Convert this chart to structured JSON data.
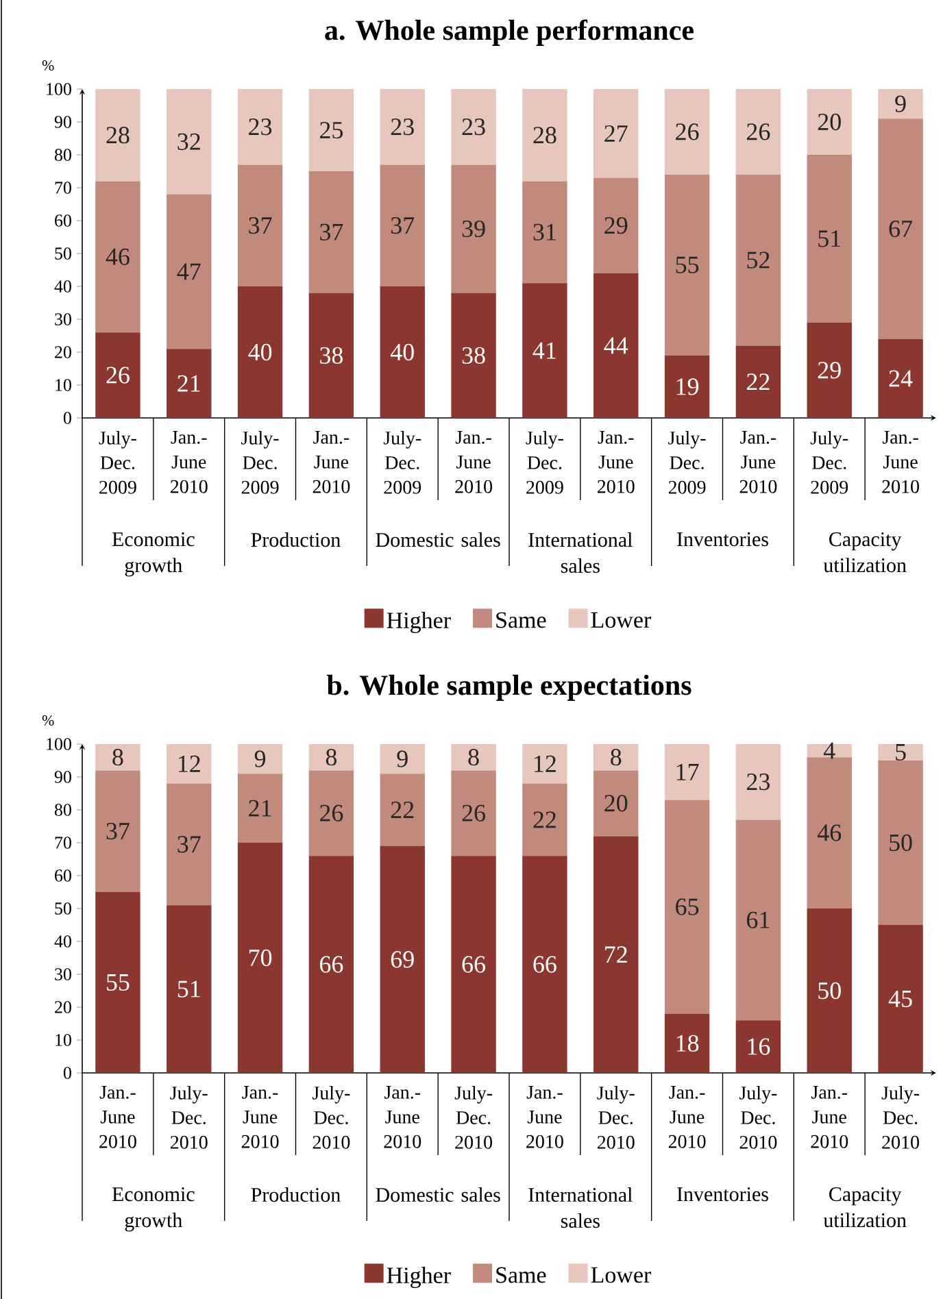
{
  "chart_data": [
    {
      "type": "bar",
      "title": "a. Whole sample performance",
      "ylabel": "%",
      "categories": [
        "July-Dec. 2009",
        "Jan.-June 2010",
        "July-Dec. 2009",
        "Jan.-June 2010",
        "July-Dec. 2009",
        "Jan.-June 2010",
        "July-Dec. 2009",
        "Jan.-June 2010",
        "July-Dec. 2009",
        "Jan.-June 2010",
        "July-Dec. 2009",
        "Jan.-June 2010"
      ],
      "annotations": [
        "Economic growth",
        "Production",
        "Domestic sales",
        "International sales",
        "Inventories",
        "Capacity utilization"
      ],
      "stacked": true,
      "ylim": [
        0,
        100
      ],
      "yticks": [
        0,
        10,
        20,
        30,
        40,
        50,
        60,
        70,
        80,
        90,
        100
      ],
      "data_labels": true,
      "legend": "bottom",
      "series": [
        {
          "name": "Higher",
          "color": "#8b3730",
          "values": [
            26,
            21,
            40,
            38,
            40,
            38,
            41,
            44,
            19,
            22,
            29,
            24
          ]
        },
        {
          "name": "Same",
          "color": "#c28a7d",
          "values": [
            46,
            47,
            37,
            37,
            37,
            39,
            31,
            29,
            55,
            52,
            51,
            67
          ]
        },
        {
          "name": "Lower",
          "color": "#e6c6bd",
          "values": [
            28,
            32,
            23,
            25,
            23,
            23,
            28,
            27,
            26,
            26,
            20,
            9
          ]
        }
      ]
    },
    {
      "type": "bar",
      "title": "b. Whole sample expectations",
      "ylabel": "%",
      "categories": [
        "Jan.-June 2010",
        "July-Dec. 2010",
        "Jan.-June 2010",
        "July-Dec. 2010",
        "Jan.-June 2010",
        "July-Dec. 2010",
        "Jan.-June 2010",
        "July-Dec. 2010",
        "Jan.-June 2010",
        "July-Dec. 2010",
        "Jan.-June 2010",
        "July-Dec. 2010"
      ],
      "annotations": [
        "Economic growth",
        "Production",
        "Domestic sales",
        "International sales",
        "Inventories",
        "Capacity utilization"
      ],
      "stacked": true,
      "ylim": [
        0,
        100
      ],
      "yticks": [
        0,
        10,
        20,
        30,
        40,
        50,
        60,
        70,
        80,
        90,
        100
      ],
      "data_labels": true,
      "legend": "bottom",
      "series": [
        {
          "name": "Higher",
          "color": "#8b3730",
          "values": [
            55,
            51,
            70,
            66,
            69,
            66,
            66,
            72,
            18,
            16,
            50,
            45
          ]
        },
        {
          "name": "Same",
          "color": "#c28a7d",
          "values": [
            37,
            37,
            21,
            26,
            22,
            26,
            22,
            20,
            65,
            61,
            46,
            50
          ]
        },
        {
          "name": "Lower",
          "color": "#e6c6bd",
          "values": [
            8,
            12,
            9,
            8,
            9,
            8,
            12,
            8,
            17,
            23,
            4,
            5
          ]
        }
      ]
    }
  ]
}
